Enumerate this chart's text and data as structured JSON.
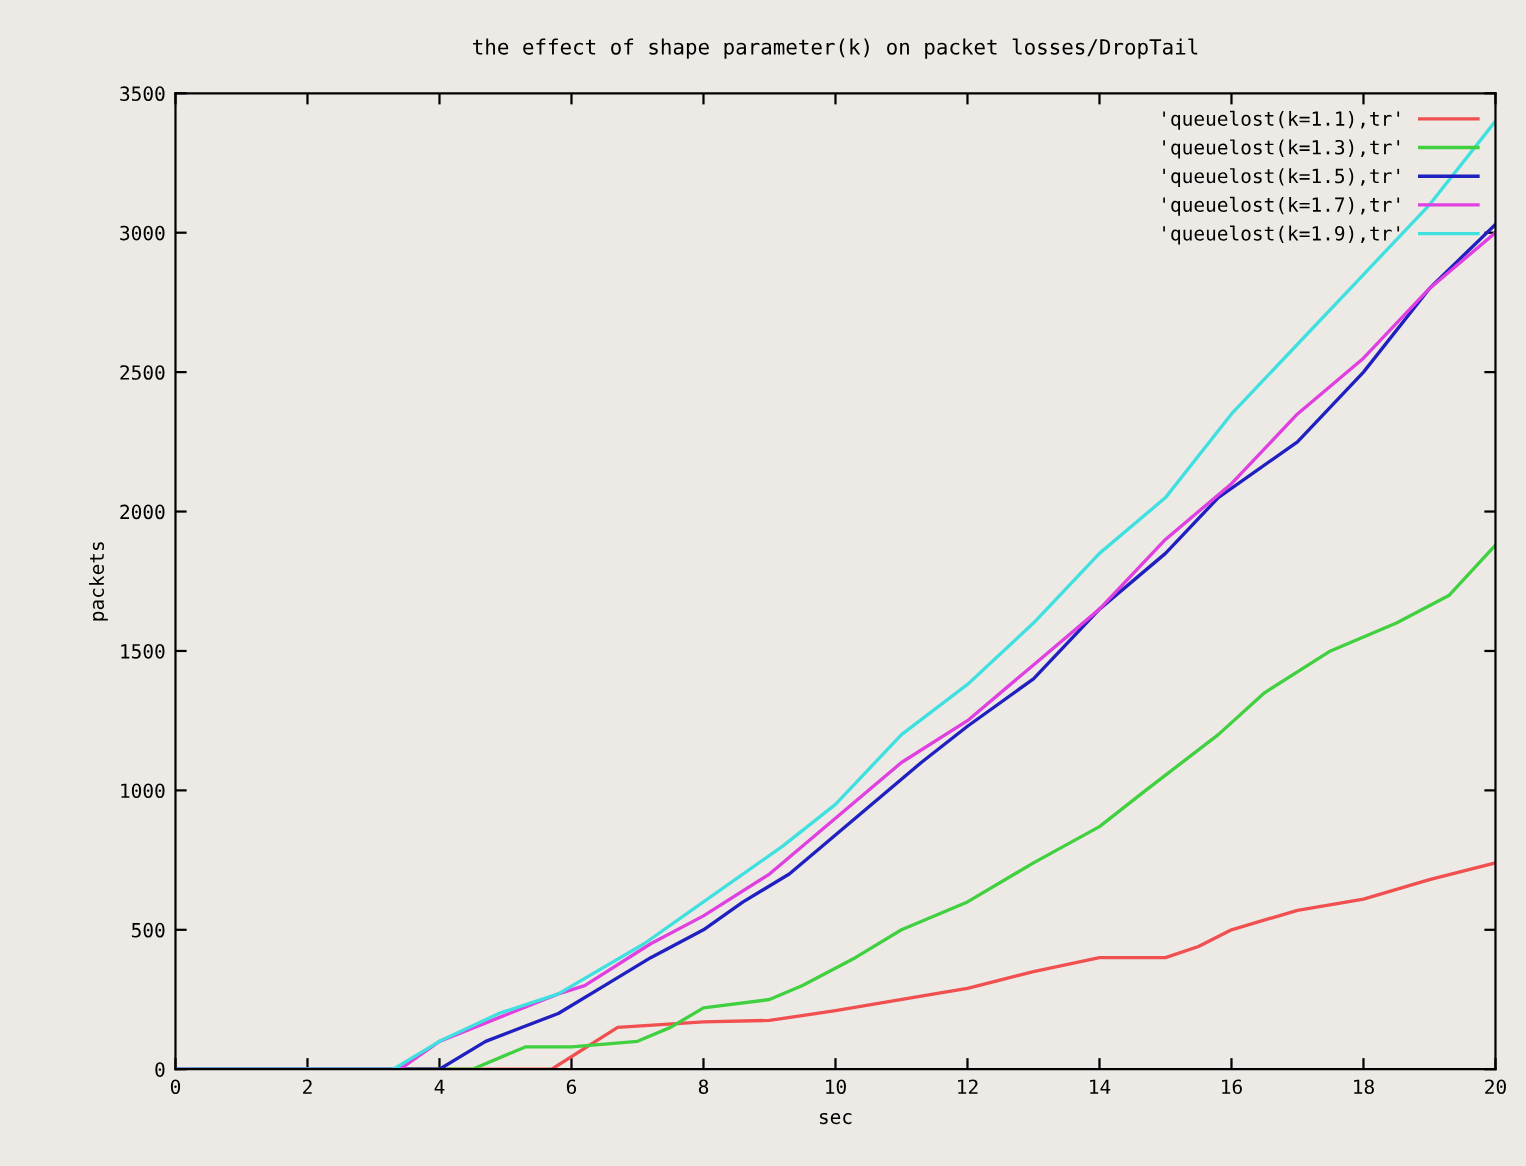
{
  "chart_data": {
    "type": "line",
    "title": "the effect of shape parameter(k) on packet losses/DropTail",
    "xlabel": "sec",
    "ylabel": "packets",
    "xlim": [
      0,
      20
    ],
    "xticks": [
      0,
      2,
      4,
      6,
      8,
      10,
      12,
      14,
      16,
      18,
      20
    ],
    "ylim": [
      0,
      3500
    ],
    "yticks": [
      0,
      500,
      1000,
      1500,
      2000,
      2500,
      3000,
      3500
    ],
    "grid": false,
    "legend": "top right",
    "marker": "none",
    "line_style": "solid",
    "series": [
      {
        "name": "'queuelost(k=1.1),tr'",
        "color": "#f05050",
        "x": [
          0,
          5.7,
          6.7,
          8,
          9,
          10,
          11.5,
          12,
          13,
          14,
          15,
          15.5,
          16,
          17,
          18,
          19,
          20
        ],
        "values": [
          0,
          0,
          150,
          170,
          175,
          210,
          270,
          290,
          350,
          400,
          400,
          440,
          500,
          570,
          610,
          680,
          740
        ]
      },
      {
        "name": "'queuelost(k=1.3),tr'",
        "color": "#40d040",
        "x": [
          0,
          4.5,
          5.3,
          6,
          7,
          7.5,
          8,
          9,
          9.5,
          10.3,
          11,
          12,
          13,
          14,
          14.7,
          15.8,
          16.5,
          17.5,
          18.5,
          19.3,
          20
        ],
        "values": [
          0,
          0,
          80,
          80,
          100,
          150,
          220,
          250,
          300,
          400,
          500,
          600,
          740,
          870,
          1000,
          1200,
          1350,
          1500,
          1600,
          1700,
          1880
        ]
      },
      {
        "name": "'queuelost(k=1.5),tr'",
        "color": "#2020c0",
        "x": [
          0,
          3.7,
          4,
          4.7,
          5.8,
          6.5,
          7.2,
          8,
          8.6,
          9.3,
          10.3,
          11.3,
          12,
          13,
          14,
          15,
          15.8,
          17,
          18,
          19,
          20
        ],
        "values": [
          0,
          0,
          0,
          100,
          200,
          300,
          400,
          500,
          600,
          700,
          900,
          1100,
          1230,
          1400,
          1650,
          1850,
          2050,
          2250,
          2500,
          2800,
          3030
        ]
      },
      {
        "name": "'queuelost(k=1.7),tr'",
        "color": "#e040e0",
        "x": [
          0,
          3.4,
          4,
          4.9,
          5.8,
          6.2,
          7.2,
          8,
          9,
          10,
          11,
          12,
          13,
          14,
          15,
          16,
          17,
          18,
          19,
          20
        ],
        "values": [
          0,
          0,
          100,
          185,
          270,
          300,
          450,
          550,
          700,
          900,
          1100,
          1250,
          1450,
          1650,
          1900,
          2100,
          2350,
          2550,
          2800,
          3000
        ]
      },
      {
        "name": "'queuelost(k=1.9),tr'",
        "color": "#40e0e0",
        "x": [
          0,
          3.3,
          4,
          4.9,
          5.8,
          7.1,
          8,
          9.2,
          10,
          11,
          12,
          13,
          14,
          15,
          16,
          17,
          18,
          19,
          20
        ],
        "values": [
          0,
          0,
          100,
          200,
          270,
          450,
          600,
          800,
          950,
          1200,
          1380,
          1600,
          1850,
          2050,
          2350,
          2600,
          2850,
          3100,
          3400
        ]
      }
    ]
  }
}
